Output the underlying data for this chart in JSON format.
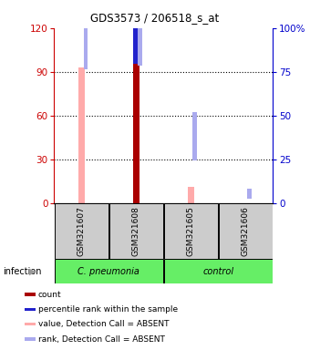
{
  "title": "GDS3573 / 206518_s_at",
  "samples": [
    "GSM321607",
    "GSM321608",
    "GSM321605",
    "GSM321606"
  ],
  "ylim_left": [
    0,
    120
  ],
  "ylim_right": [
    0,
    100
  ],
  "yticks_left": [
    0,
    30,
    60,
    90,
    120
  ],
  "yticks_right": [
    0,
    25,
    50,
    75,
    100
  ],
  "ylabel_left_color": "#cc0000",
  "ylabel_right_color": "#0000cc",
  "value_absent": [
    93,
    null,
    11,
    null
  ],
  "count": [
    null,
    113,
    null,
    null
  ],
  "percentile_rank": [
    null,
    82,
    null,
    null
  ],
  "rank_absent": [
    78,
    80,
    26,
    4
  ],
  "color_value_absent": "#ffaaaa",
  "color_count": "#aa0000",
  "color_percentile_rank": "#2222cc",
  "color_rank_absent": "#aaaaee",
  "group_color": "#66ee66",
  "gray_color": "#cccccc",
  "label_infection": "infection",
  "legend_items": [
    {
      "label": "count",
      "color": "#aa0000"
    },
    {
      "label": "percentile rank within the sample",
      "color": "#2222cc"
    },
    {
      "label": "value, Detection Call = ABSENT",
      "color": "#ffaaaa"
    },
    {
      "label": "rank, Detection Call = ABSENT",
      "color": "#aaaaee"
    }
  ]
}
